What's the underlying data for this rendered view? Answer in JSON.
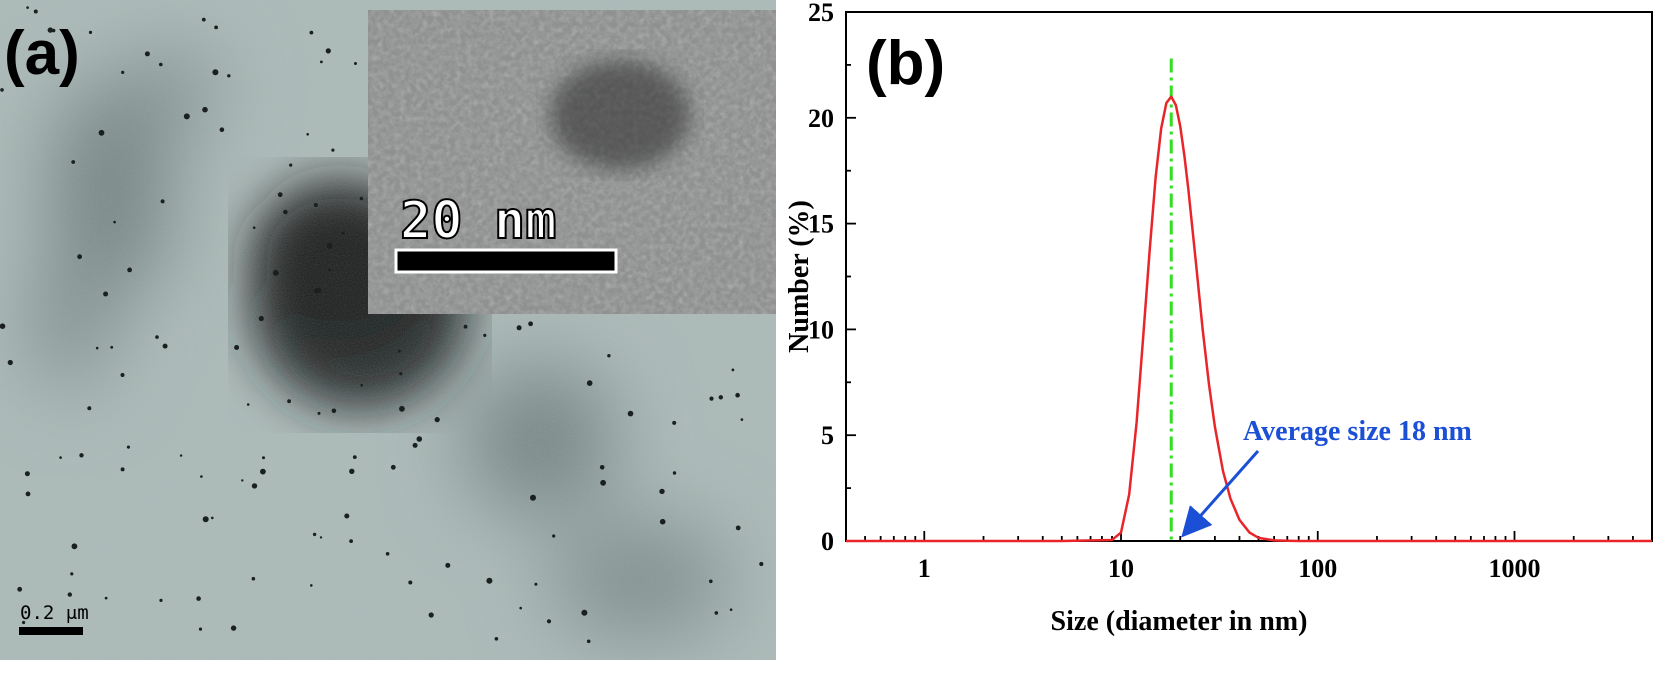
{
  "panel_a": {
    "label": "(a)",
    "inset_scale_text": "20  nm",
    "main_scale_text": "0.2 μm"
  },
  "chart_data": {
    "type": "line",
    "panel_label": "(b)",
    "title": "",
    "xlabel": "Size (diameter in nm)",
    "ylabel": "Number (%)",
    "xscale": "log",
    "xlim": [
      0.4,
      5000
    ],
    "ylim": [
      0,
      25
    ],
    "xticks": [
      1,
      10,
      100,
      1000
    ],
    "xtick_labels": [
      "1",
      "10",
      "100",
      "1000"
    ],
    "yticks": [
      0,
      5,
      10,
      15,
      20,
      25
    ],
    "ytick_labels": [
      "0",
      "5",
      "10",
      "15",
      "20",
      "25"
    ],
    "grid": false,
    "series": [
      {
        "color": "#e8262a",
        "x": [
          0.4,
          5,
          9,
          10,
          11,
          12,
          13,
          14,
          15,
          16,
          17,
          18,
          19,
          20,
          21,
          22,
          24,
          26,
          28,
          30,
          33,
          36,
          40,
          45,
          50,
          60,
          70,
          80,
          100,
          1000,
          5000
        ],
        "y": [
          0,
          0,
          0.05,
          0.4,
          2.2,
          5.6,
          9.8,
          13.8,
          17.2,
          19.5,
          20.7,
          21.0,
          20.6,
          19.6,
          18.2,
          16.6,
          13.2,
          10.0,
          7.4,
          5.4,
          3.3,
          2.0,
          1.0,
          0.4,
          0.15,
          0.03,
          0.01,
          0,
          0,
          0,
          0
        ]
      }
    ],
    "reference_line": {
      "x": 18,
      "color": "#33dd22",
      "style": "dash-dot"
    },
    "annotation": {
      "text": "Average size 18 nm",
      "color": "#1a4fd6",
      "arrow_to": {
        "x": 18,
        "y": 0
      }
    }
  }
}
